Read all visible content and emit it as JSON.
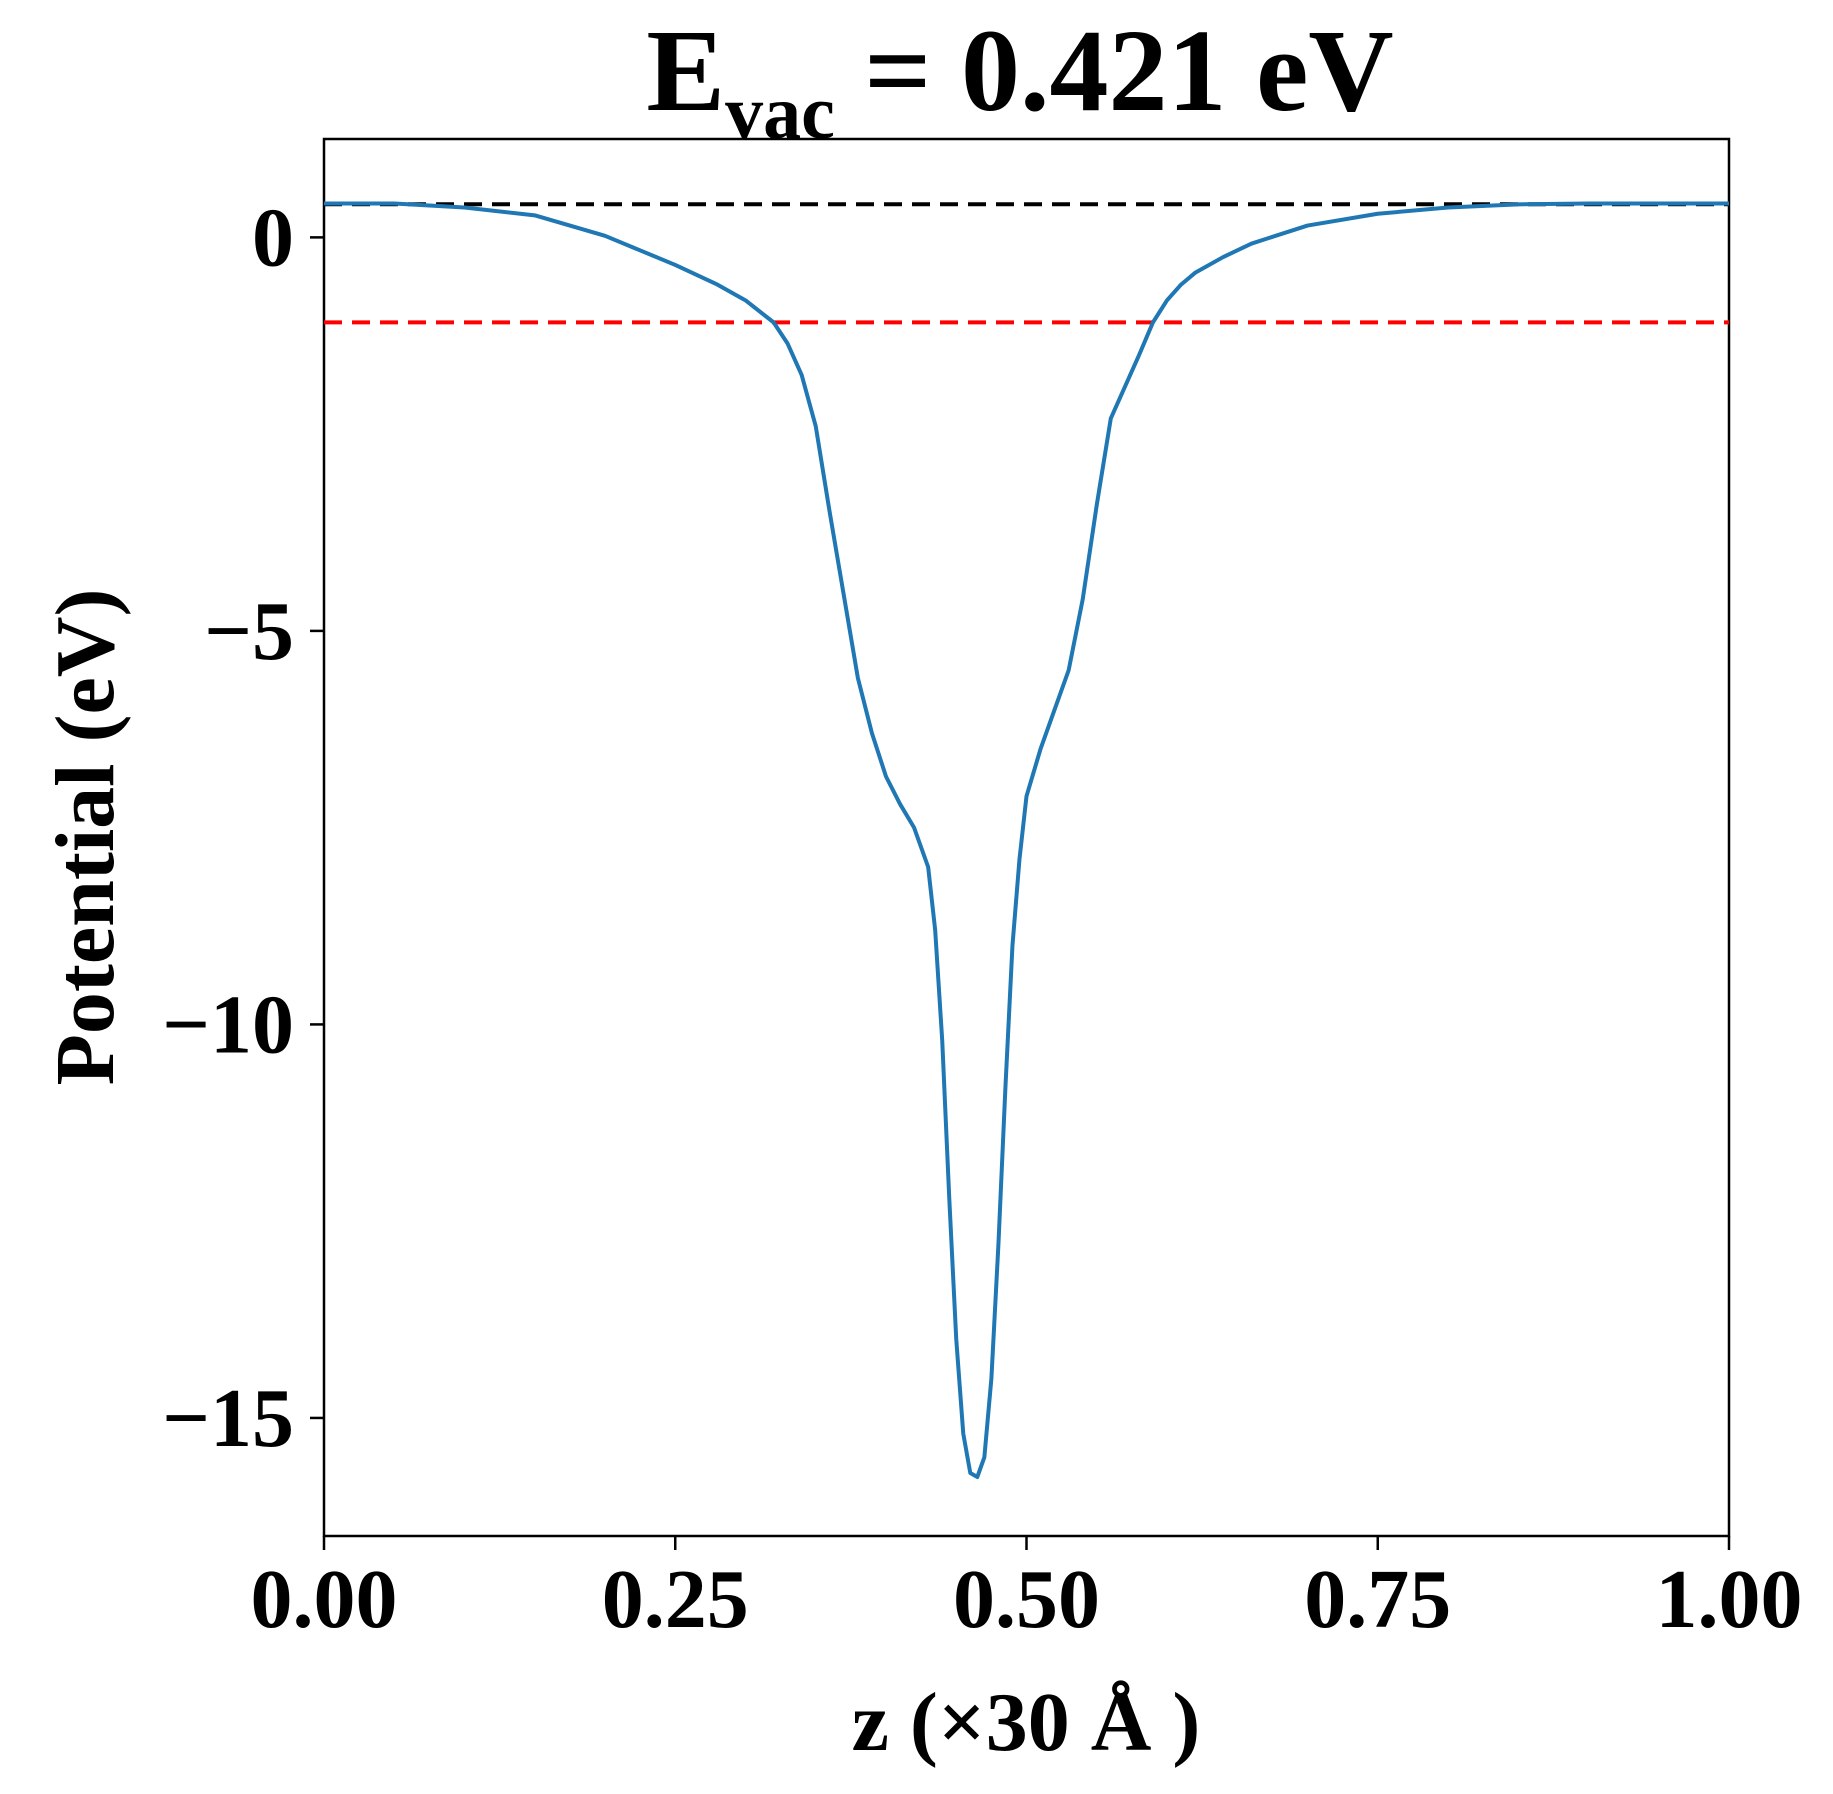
{
  "chart_data": {
    "type": "line",
    "title": {
      "main": "E",
      "subscript": "vac",
      "rest": " = 0.421 eV"
    },
    "xlabel": "z (×30 Å )",
    "ylabel": "Potential (eV)",
    "xlim": [
      0.0,
      1.0
    ],
    "ylim": [
      -16.5,
      1.25
    ],
    "xticks": [
      0.0,
      0.25,
      0.5,
      0.75,
      1.0
    ],
    "xtick_labels": [
      "0.00",
      "0.25",
      "0.50",
      "0.75",
      "1.00"
    ],
    "yticks": [
      0,
      -5,
      -10,
      -15
    ],
    "ytick_labels": [
      "0",
      "−5",
      "−10",
      "−15"
    ],
    "grid": false,
    "hlines": [
      {
        "y": 0.421,
        "color": "#000000",
        "style": "dashed"
      },
      {
        "y": -1.08,
        "color": "#ff0000",
        "style": "dashed"
      }
    ],
    "series": [
      {
        "color": "#1f77b4",
        "x": [
          0.0,
          0.05,
          0.1,
          0.15,
          0.2,
          0.25,
          0.28,
          0.3,
          0.32,
          0.33,
          0.34,
          0.35,
          0.36,
          0.38,
          0.39,
          0.4,
          0.41,
          0.42,
          0.43,
          0.435,
          0.44,
          0.445,
          0.45,
          0.455,
          0.46,
          0.465,
          0.47,
          0.475,
          0.48,
          0.485,
          0.49,
          0.495,
          0.5,
          0.505,
          0.51,
          0.52,
          0.53,
          0.54,
          0.55,
          0.56,
          0.58,
          0.59,
          0.6,
          0.61,
          0.62,
          0.64,
          0.66,
          0.7,
          0.75,
          0.8,
          0.85,
          0.9,
          0.95,
          1.0
        ],
        "y": [
          0.43,
          0.43,
          0.38,
          0.28,
          0.02,
          -0.35,
          -0.6,
          -0.8,
          -1.08,
          -1.35,
          -1.75,
          -2.4,
          -3.5,
          -5.6,
          -6.3,
          -6.85,
          -7.2,
          -7.5,
          -8.0,
          -8.8,
          -10.2,
          -12.2,
          -14.0,
          -15.2,
          -15.7,
          -15.75,
          -15.5,
          -14.5,
          -12.8,
          -10.8,
          -9.0,
          -7.9,
          -7.1,
          -6.8,
          -6.5,
          -6.0,
          -5.5,
          -4.6,
          -3.4,
          -2.3,
          -1.5,
          -1.08,
          -0.8,
          -0.6,
          -0.45,
          -0.25,
          -0.08,
          0.15,
          0.3,
          0.38,
          0.42,
          0.43,
          0.43,
          0.43
        ]
      }
    ]
  }
}
